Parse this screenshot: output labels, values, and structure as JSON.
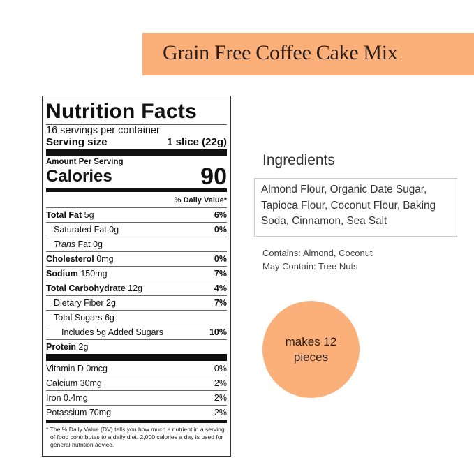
{
  "product_title": "Grain Free Coffee Cake Mix",
  "colors": {
    "accent": "#fbb07a"
  },
  "nutrition": {
    "title": "Nutrition Facts",
    "servings": "16 servings per container",
    "serving_size_label": "Serving size",
    "serving_size_value": "1 slice (22g)",
    "amount_per_serving": "Amount Per Serving",
    "calories_label": "Calories",
    "calories_value": "90",
    "daily_value_header": "% Daily Value*",
    "rows": [
      {
        "name": "Total Fat",
        "amount": "5g",
        "dv": "6%"
      },
      {
        "name": "Saturated Fat",
        "amount": "0g",
        "dv": "0%"
      },
      {
        "name": "Trans",
        "name2": "Fat",
        "amount": "0g",
        "dv": ""
      },
      {
        "name": "Cholesterol",
        "amount": "0mg",
        "dv": "0%"
      },
      {
        "name": "Sodium",
        "amount": "150mg",
        "dv": "7%"
      },
      {
        "name": "Total Carbohydrate",
        "amount": "12g",
        "dv": "4%"
      },
      {
        "name": "Dietary Fiber",
        "amount": "2g",
        "dv": "7%"
      },
      {
        "name": "Total Sugars",
        "amount": "6g",
        "dv": ""
      },
      {
        "name": "Includes 5g Added Sugars",
        "amount": "",
        "dv": "10%"
      },
      {
        "name": "Protein",
        "amount": "2g",
        "dv": ""
      }
    ],
    "vitamins": [
      {
        "label": "Vitamin D 0mcg",
        "dv": "0%"
      },
      {
        "label": "Calcium 30mg",
        "dv": "2%"
      },
      {
        "label": "Iron 0.4mg",
        "dv": "2%"
      },
      {
        "label": "Potassium 70mg",
        "dv": "2%"
      }
    ],
    "footnote": "* The % Daily Value (DV) tells you how much a nutrient in a serving of food contributes to a daily diet. 2,000 calories a day is used for general nutrition advice."
  },
  "ingredients": {
    "title": "Ingredients",
    "text": "Almond Flour, Organic Date Sugar, Tapioca Flour, Coconut Flour, Baking Soda, Cinnamon, Sea Salt",
    "contains": "Contains: Almond, Coconut",
    "may_contain": "May Contain: Tree Nuts"
  },
  "badge": {
    "line1": "makes 12",
    "line2": "pieces"
  }
}
